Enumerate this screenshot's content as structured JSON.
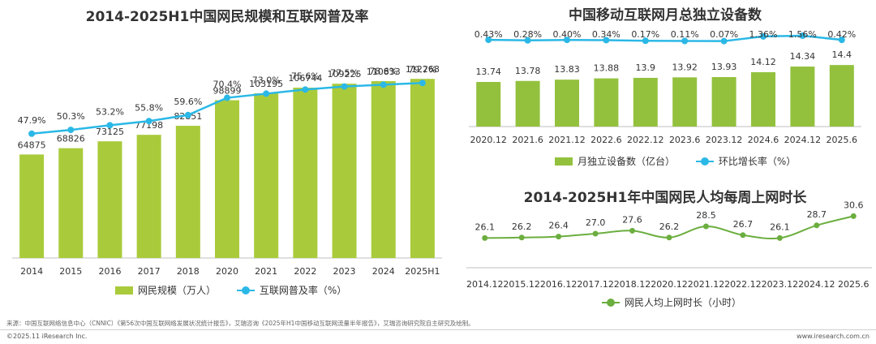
{
  "colors": {
    "bar": "#93C13E",
    "bar_left": "#A9CB3B",
    "line": "#2BB8E6",
    "line_green": "#6BAE3F",
    "text": "#333333"
  },
  "chart_data": [
    {
      "type": "bar+line",
      "title": "2014-2025H1中国网民规模和互联网普及率",
      "categories": [
        "2014",
        "2015",
        "2016",
        "2017",
        "2018",
        "2020",
        "2021",
        "2022",
        "2023",
        "2024",
        "2025H1"
      ],
      "series": [
        {
          "name": "网民规模（万人）",
          "type": "bar",
          "values": [
            64875,
            68826,
            73125,
            77198,
            82851,
            98899,
            103195,
            106744,
            109225,
            110833,
            112268
          ],
          "labels": [
            "64875",
            "68826",
            "73125",
            "77198",
            "82851",
            "98899",
            "103195",
            "106744",
            "109225",
            "110833",
            "112268"
          ]
        },
        {
          "name": "互联网普及率（%）",
          "type": "line",
          "values": [
            47.9,
            50.3,
            53.2,
            55.8,
            59.6,
            70.4,
            73.0,
            75.6,
            77.5,
            78.6,
            79.7
          ],
          "labels": [
            "47.9%",
            "50.3%",
            "53.2%",
            "55.8%",
            "59.6%",
            "70.4%",
            "73.0%",
            "75.6%",
            "77.5%",
            "78.6%",
            "79.7%"
          ]
        }
      ],
      "bar_ylim": [
        0,
        120000
      ],
      "line_ylim": [
        -30,
        90
      ],
      "grid": false,
      "legend": "bottom"
    },
    {
      "type": "bar+line",
      "title": "中国移动互联网月总独立设备数",
      "categories": [
        "2020.12",
        "2021.6",
        "2021.12",
        "2022.6",
        "2022.12",
        "2023.6",
        "2023.12",
        "2024.6",
        "2024.12",
        "2025.6"
      ],
      "series": [
        {
          "name": "月独立设备数（亿台）",
          "type": "bar",
          "values": [
            13.74,
            13.78,
            13.83,
            13.88,
            13.9,
            13.92,
            13.93,
            14.12,
            14.34,
            14.4
          ],
          "labels": [
            "13.74",
            "13.78",
            "13.83",
            "13.88",
            "13.9",
            "13.92",
            "13.93",
            "14.12",
            "14.34",
            "14.4"
          ]
        },
        {
          "name": "环比增长率（%）",
          "type": "line",
          "values": [
            0.43,
            0.28,
            0.4,
            0.34,
            0.17,
            0.11,
            0.07,
            1.36,
            1.56,
            0.42
          ],
          "labels": [
            "0.43%",
            "0.28%",
            "0.40%",
            "0.34%",
            "0.17%",
            "0.11%",
            "0.07%",
            "1.36%",
            "1.56%",
            "0.42%"
          ]
        }
      ],
      "bar_ylim": [
        12.0,
        14.5
      ],
      "grid": false,
      "legend": "bottom"
    },
    {
      "type": "line",
      "title": "2014-2025H1年中国网民人均每周上网时长",
      "categories": [
        "2014.12",
        "2015.12",
        "2016.12",
        "2017.12",
        "2018.12",
        "2020.12",
        "2021.12",
        "2022.12",
        "2023.12",
        "2024.12",
        "2025.6"
      ],
      "series": [
        {
          "name": "网民人均上网时长（小时）",
          "values": [
            26.1,
            26.2,
            26.4,
            27.0,
            27.6,
            26.2,
            28.5,
            26.7,
            26.1,
            28.7,
            30.6
          ],
          "labels": [
            "26.1",
            "26.2",
            "26.4",
            "27.0",
            "27.6",
            "26.2",
            "28.5",
            "26.7",
            "26.1",
            "28.7",
            "30.6"
          ]
        }
      ],
      "ylim": [
        20,
        32
      ],
      "grid": false,
      "legend": "bottom"
    }
  ],
  "footer": {
    "source": "来源：中国互联网络信息中心（CNNIC）《第56次中国互联网络发展状况统计报告》，艾瑞咨询《2025年H1中国移动互联网流量半年报告》，艾瑞咨询研究院自主研究及绘制。",
    "copyright": "©2025.11 iResearch Inc.",
    "website": "www.iresearch.com.cn"
  }
}
